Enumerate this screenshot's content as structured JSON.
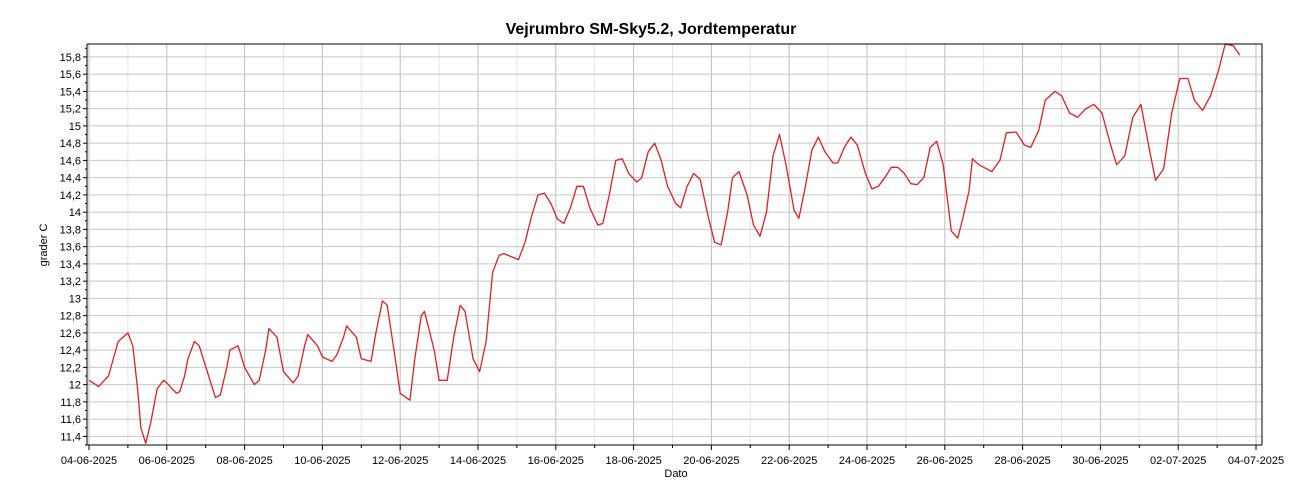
{
  "chart_data": {
    "type": "line",
    "title": "Vejrumbro SM-Sky5.2, Jordtemperatur",
    "xlabel": "Dato",
    "ylabel": "grader C",
    "x_start": "04-06-2025",
    "x_end": "04-07-2025",
    "x_tick_labels": [
      "04-06-2025",
      "06-06-2025",
      "08-06-2025",
      "10-06-2025",
      "12-06-2025",
      "14-06-2025",
      "16-06-2025",
      "18-06-2025",
      "20-06-2025",
      "22-06-2025",
      "24-06-2025",
      "26-06-2025",
      "28-06-2025",
      "30-06-2025",
      "02-07-2025",
      "04-07-2025"
    ],
    "y_tick_labels": [
      "11,4",
      "11,6",
      "11,8",
      "12",
      "12,2",
      "12,4",
      "12,6",
      "12,8",
      "13",
      "13,2",
      "13,4",
      "13,6",
      "13,8",
      "14",
      "14,2",
      "14,4",
      "14,6",
      "14,8",
      "15",
      "15,2",
      "15,4",
      "15,6",
      "15,8"
    ],
    "ylim": [
      11.3,
      15.95
    ],
    "grid": true,
    "line_color": "#e02020",
    "series": [
      {
        "x": [
          "04-06-2025 00:00",
          "04-06-2025 06:00",
          "04-06-2025 12:00",
          "04-06-2025 18:00",
          "05-06-2025 00:00",
          "05-06-2025 03:00",
          "05-06-2025 06:00",
          "05-06-2025 08:00",
          "05-06-2025 11:00",
          "05-06-2025 14:00",
          "05-06-2025 18:00",
          "05-06-2025 22:00",
          "06-06-2025 00:00",
          "06-06-2025 06:00",
          "06-06-2025 08:00",
          "06-06-2025 11:00",
          "06-06-2025 13:00",
          "06-06-2025 17:00",
          "06-06-2025 20:00",
          "07-06-2025 01:00",
          "07-06-2025 06:00",
          "07-06-2025 09:00",
          "07-06-2025 13:00",
          "07-06-2025 15:00",
          "07-06-2025 20:00",
          "08-06-2025 00:00",
          "08-06-2025 06:00",
          "08-06-2025 09:00",
          "08-06-2025 13:00",
          "08-06-2025 15:00",
          "08-06-2025 20:00",
          "09-06-2025 00:00",
          "09-06-2025 06:00",
          "09-06-2025 09:00",
          "09-06-2025 13:00",
          "09-06-2025 15:00",
          "09-06-2025 21:00",
          "10-06-2025 00:00",
          "10-06-2025 06:00",
          "10-06-2025 09:00",
          "10-06-2025 13:00",
          "10-06-2025 15:00",
          "10-06-2025 21:00",
          "11-06-2025 00:00",
          "11-06-2025 06:00",
          "11-06-2025 09:00",
          "11-06-2025 13:00",
          "11-06-2025 16:00",
          "11-06-2025 21:00",
          "12-06-2025 00:00",
          "12-06-2025 06:00",
          "12-06-2025 09:00",
          "12-06-2025 13:00",
          "12-06-2025 15:00",
          "12-06-2025 21:00",
          "13-06-2025 00:00",
          "13-06-2025 05:00",
          "13-06-2025 09:00",
          "13-06-2025 13:00",
          "13-06-2025 16:00",
          "13-06-2025 21:00",
          "14-06-2025 01:00",
          "14-06-2025 05:00",
          "14-06-2025 09:00",
          "14-06-2025 13:00",
          "14-06-2025 16:00",
          "14-06-2025 21:00",
          "15-06-2025 01:00",
          "15-06-2025 05:00",
          "15-06-2025 09:00",
          "15-06-2025 13:00",
          "15-06-2025 17:00",
          "15-06-2025 21:00",
          "16-06-2025 01:00",
          "16-06-2025 05:00",
          "16-06-2025 09:00",
          "16-06-2025 13:00",
          "16-06-2025 17:00",
          "16-06-2025 21:00",
          "17-06-2025 02:00",
          "17-06-2025 05:00",
          "17-06-2025 09:00",
          "17-06-2025 13:00",
          "17-06-2025 17:00",
          "17-06-2025 21:00",
          "18-06-2025 02:00",
          "18-06-2025 05:00",
          "18-06-2025 09:00",
          "18-06-2025 13:00",
          "18-06-2025 17:00",
          "18-06-2025 21:00",
          "19-06-2025 02:00",
          "19-06-2025 05:00",
          "19-06-2025 09:00",
          "19-06-2025 13:00",
          "19-06-2025 17:00",
          "19-06-2025 22:00",
          "20-06-2025 02:00",
          "20-06-2025 06:00",
          "20-06-2025 10:00",
          "20-06-2025 13:00",
          "20-06-2025 17:00",
          "20-06-2025 22:00",
          "21-06-2025 02:00",
          "21-06-2025 06:00",
          "21-06-2025 10:00",
          "21-06-2025 14:00",
          "21-06-2025 18:00",
          "21-06-2025 22:00",
          "22-06-2025 03:00",
          "22-06-2025 06:00",
          "22-06-2025 10:00",
          "22-06-2025 14:00",
          "22-06-2025 18:00",
          "22-06-2025 22:00",
          "23-06-2025 03:00",
          "23-06-2025 06:00",
          "23-06-2025 10:00",
          "23-06-2025 14:00",
          "23-06-2025 18:00",
          "23-06-2025 23:00",
          "24-06-2025 03:00",
          "24-06-2025 07:00",
          "24-06-2025 11:00",
          "24-06-2025 15:00",
          "24-06-2025 19:00",
          "24-06-2025 23:00",
          "25-06-2025 03:00",
          "25-06-2025 07:00",
          "25-06-2025 11:00",
          "25-06-2025 15:00",
          "25-06-2025 19:00",
          "25-06-2025 23:00",
          "26-06-2025 04:00",
          "26-06-2025 08:00",
          "26-06-2025 11:00",
          "26-06-2025 15:00",
          "26-06-2025 17:00",
          "26-06-2025 21:00",
          "27-06-2025 00:00",
          "27-06-2025 05:00",
          "27-06-2025 10:00",
          "27-06-2025 14:00",
          "27-06-2025 20:00",
          "28-06-2025 01:00",
          "28-06-2025 05:00",
          "28-06-2025 10:00",
          "28-06-2025 14:00",
          "28-06-2025 20:00",
          "29-06-2025 00:00",
          "29-06-2025 05:00",
          "29-06-2025 10:00",
          "29-06-2025 15:00",
          "29-06-2025 20:00",
          "30-06-2025 01:00",
          "30-06-2025 06:00",
          "30-06-2025 10:00",
          "30-06-2025 15:00",
          "30-06-2025 20:00",
          "01-07-2025 01:00",
          "01-07-2025 06:00",
          "01-07-2025 10:00",
          "01-07-2025 15:00",
          "01-07-2025 20:00",
          "02-07-2025 01:00",
          "02-07-2025 06:00",
          "02-07-2025 10:00",
          "02-07-2025 15:00",
          "02-07-2025 20:00",
          "03-07-2025 01:00",
          "03-07-2025 05:00",
          "03-07-2025 10:00",
          "03-07-2025 14:00"
        ],
        "y": [
          12.05,
          11.98,
          12.1,
          12.5,
          12.6,
          12.45,
          11.95,
          11.5,
          11.32,
          11.55,
          11.95,
          12.05,
          12.02,
          11.9,
          11.92,
          12.1,
          12.3,
          12.5,
          12.45,
          12.15,
          11.85,
          11.88,
          12.2,
          12.4,
          12.45,
          12.2,
          12.0,
          12.05,
          12.4,
          12.65,
          12.55,
          12.15,
          12.02,
          12.1,
          12.45,
          12.58,
          12.45,
          12.32,
          12.27,
          12.35,
          12.55,
          12.68,
          12.55,
          12.3,
          12.27,
          12.6,
          12.97,
          12.92,
          12.3,
          11.9,
          11.82,
          12.3,
          12.8,
          12.85,
          12.4,
          12.05,
          12.05,
          12.55,
          12.92,
          12.85,
          12.3,
          12.15,
          12.5,
          13.3,
          13.5,
          13.52,
          13.48,
          13.45,
          13.65,
          13.95,
          14.2,
          14.22,
          14.1,
          13.92,
          13.87,
          14.05,
          14.3,
          14.3,
          14.05,
          13.85,
          13.87,
          14.2,
          14.6,
          14.62,
          14.45,
          14.35,
          14.4,
          14.7,
          14.8,
          14.6,
          14.3,
          14.1,
          14.05,
          14.3,
          14.45,
          14.38,
          13.95,
          13.65,
          13.62,
          14.0,
          14.4,
          14.47,
          14.2,
          13.85,
          13.72,
          14.0,
          14.65,
          14.9,
          14.55,
          14.02,
          13.93,
          14.3,
          14.72,
          14.87,
          14.7,
          14.57,
          14.57,
          14.75,
          14.87,
          14.78,
          14.45,
          14.27,
          14.3,
          14.4,
          14.52,
          14.52,
          14.45,
          14.33,
          14.32,
          14.4,
          14.75,
          14.82,
          14.55,
          13.78,
          13.7,
          13.92,
          14.25,
          14.62,
          14.55,
          14.52,
          14.47,
          14.6,
          14.92,
          14.93,
          14.78,
          14.75,
          14.95,
          15.3,
          15.4,
          15.35,
          15.15,
          15.1,
          15.2,
          15.25,
          15.15,
          14.8,
          14.55,
          14.65,
          15.1,
          15.25,
          14.75,
          14.37,
          14.5,
          15.15,
          15.55,
          15.55,
          15.3,
          15.18,
          15.35,
          15.65,
          15.95,
          15.93,
          15.82
        ]
      }
    ]
  }
}
